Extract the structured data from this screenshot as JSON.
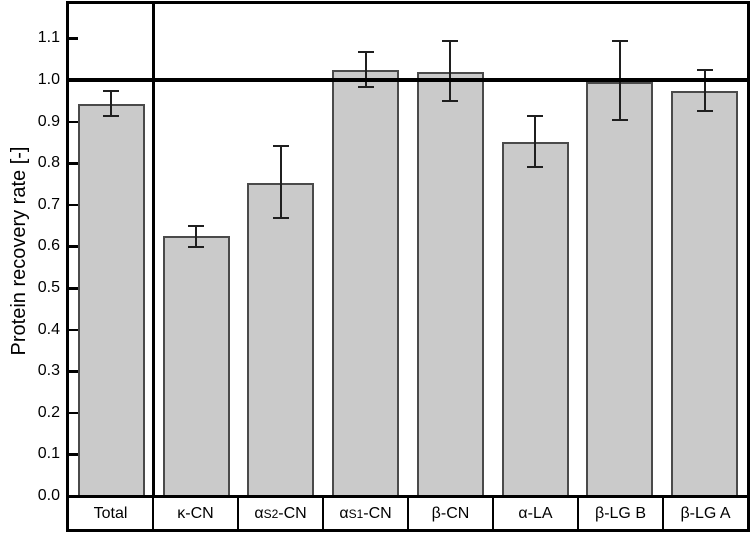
{
  "chart_data": {
    "type": "bar",
    "title": "",
    "xlabel": "",
    "ylabel": "Protein recovery rate [-]",
    "ylim": [
      0.0,
      1.19
    ],
    "yticks": [
      0.0,
      0.1,
      0.2,
      0.3,
      0.4,
      0.5,
      0.6,
      0.7,
      0.8,
      0.9,
      1.0,
      1.1
    ],
    "grid": false,
    "legend": "none",
    "reference_line_y": 1.0,
    "divider_after_index": 0,
    "categories": [
      {
        "pre": "Total",
        "sub": "",
        "post": ""
      },
      {
        "pre": "κ-CN",
        "sub": "",
        "post": ""
      },
      {
        "pre": "α",
        "sub": "S2",
        "post": "-CN"
      },
      {
        "pre": "α",
        "sub": "S1",
        "post": "-CN"
      },
      {
        "pre": "β-CN",
        "sub": "",
        "post": ""
      },
      {
        "pre": "α-LA",
        "sub": "",
        "post": ""
      },
      {
        "pre": "β-LG B",
        "sub": "",
        "post": ""
      },
      {
        "pre": "β-LG A",
        "sub": "",
        "post": ""
      }
    ],
    "values": [
      0.943,
      0.624,
      0.753,
      1.024,
      1.019,
      0.851,
      0.996,
      0.974
    ],
    "error_upper": [
      0.974,
      0.649,
      0.841,
      1.068,
      1.094,
      0.913,
      1.094,
      1.024
    ],
    "error_lower": [
      0.913,
      0.599,
      0.668,
      0.983,
      0.95,
      0.791,
      0.904,
      0.926
    ],
    "colors": {
      "bar_fill": "#cacaca",
      "bar_border": "#4a4a4a",
      "error_bar": "#1f1f1f",
      "frame": "#000000",
      "background": "#ffffff"
    }
  }
}
